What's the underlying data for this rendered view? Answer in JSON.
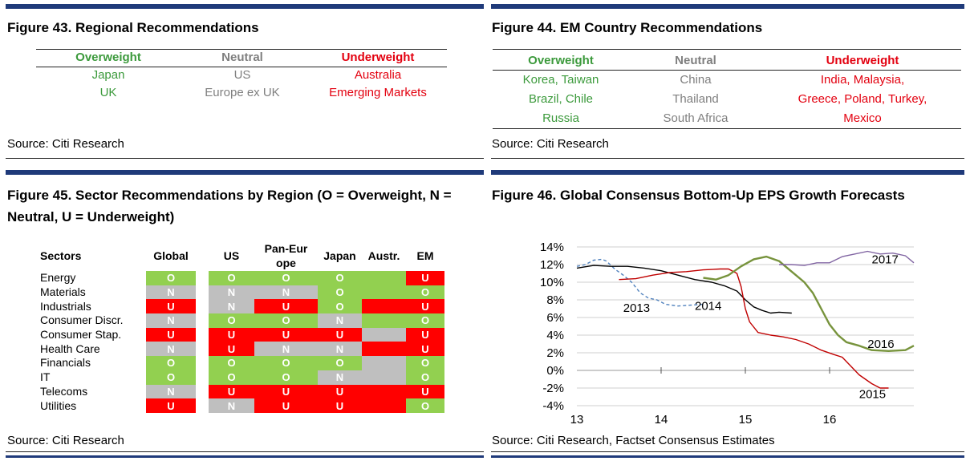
{
  "fig43": {
    "title": "Figure 43. Regional Recommendations",
    "headers": {
      "overweight": "Overweight",
      "neutral": "Neutral",
      "underweight": "Underweight"
    },
    "overweight": [
      "Japan",
      "UK"
    ],
    "neutral": [
      "US",
      "Europe ex UK"
    ],
    "underweight": [
      "Australia",
      "Emerging Markets"
    ],
    "source": "Source: Citi Research"
  },
  "fig44": {
    "title": "Figure 44. EM Country Recommendations",
    "headers": {
      "overweight": "Overweight",
      "neutral": "Neutral",
      "underweight": "Underweight"
    },
    "overweight": [
      "Korea, Taiwan",
      "Brazil, Chile",
      "Russia"
    ],
    "neutral": [
      "China",
      "Thailand",
      "South Africa"
    ],
    "underweight": [
      "India, Malaysia,",
      "Greece, Poland, Turkey,",
      "Mexico"
    ],
    "source": "Source: Citi Research"
  },
  "fig45": {
    "title_line1": "Figure 45. Sector Recommendations by Region (O = Overweight, N =",
    "title_line2": "Neutral, U = Underweight)",
    "columns": [
      "Sectors",
      "Global",
      "US",
      "Pan-Europe",
      "Japan",
      "Austr.",
      "EM"
    ],
    "rows": [
      {
        "sector": "Energy",
        "Global": "O",
        "US": "O",
        "Pan-Europe": "O",
        "Japan": "O",
        "Austr.": "O",
        "EM": "U"
      },
      {
        "sector": "Materials",
        "Global": "N",
        "US": "N",
        "Pan-Europe": "N",
        "Japan": "O",
        "Austr.": "O",
        "EM": "O"
      },
      {
        "sector": "Industrials",
        "Global": "U",
        "US": "N",
        "Pan-Europe": "U",
        "Japan": "O",
        "Austr.": "U",
        "EM": "U"
      },
      {
        "sector": "Consumer Discr.",
        "Global": "N",
        "US": "O",
        "Pan-Europe": "O",
        "Japan": "N",
        "Austr.": "O",
        "EM": "O"
      },
      {
        "sector": "Consumer Stap.",
        "Global": "U",
        "US": "U",
        "Pan-Europe": "U",
        "Japan": "U",
        "Austr.": "N",
        "EM": "U"
      },
      {
        "sector": "Health Care",
        "Global": "N",
        "US": "U",
        "Pan-Europe": "N",
        "Japan": "N",
        "Austr.": "U",
        "EM": "U"
      },
      {
        "sector": "Financials",
        "Global": "O",
        "US": "O",
        "Pan-Europe": "O",
        "Japan": "O",
        "Austr.": "N",
        "EM": "O"
      },
      {
        "sector": "IT",
        "Global": "O",
        "US": "O",
        "Pan-Europe": "O",
        "Japan": "N",
        "Austr.": "N",
        "EM": "O"
      },
      {
        "sector": "Telecoms",
        "Global": "N",
        "US": "U",
        "Pan-Europe": "U",
        "Japan": "U",
        "Austr.": "U",
        "EM": "U"
      },
      {
        "sector": "Utilities",
        "Global": "U",
        "US": "N",
        "Pan-Europe": "U",
        "Japan": "U",
        "Austr.": "U",
        "EM": "O"
      }
    ],
    "colors": {
      "O": "#92d050",
      "N": "#bfbfbf",
      "U": "#ff0000"
    },
    "source": "Source: Citi Research"
  },
  "fig46": {
    "title": "Figure 46. Global Consensus Bottom-Up EPS Growth Forecasts",
    "source": "Source: Citi Research, Factset Consensus Estimates"
  },
  "chart_data": {
    "type": "line",
    "title": "Figure 46. Global Consensus Bottom-Up EPS Growth Forecasts",
    "xlabel": "",
    "ylabel": "",
    "xlim": [
      13,
      17
    ],
    "ylim": [
      -4,
      14
    ],
    "xticks": [
      13,
      14,
      15,
      16
    ],
    "xtick_labels": [
      "13",
      "14",
      "15",
      "16"
    ],
    "yticks": [
      -4,
      -2,
      0,
      2,
      4,
      6,
      8,
      10,
      12,
      14
    ],
    "ytick_labels": [
      "-4%",
      "-2%",
      "0%",
      "2%",
      "4%",
      "6%",
      "8%",
      "10%",
      "12%",
      "14%"
    ],
    "grid": true,
    "series": [
      {
        "name": "2013",
        "color": "#4f81bd",
        "dash": true,
        "label_at": [
          13.55,
          7.1
        ],
        "x": [
          13.0,
          13.1,
          13.2,
          13.3,
          13.35,
          13.45,
          13.55,
          13.65,
          13.75,
          13.85,
          13.95,
          14.05,
          14.2,
          14.35,
          14.5
        ],
        "y": [
          11.8,
          12.0,
          12.5,
          12.6,
          12.4,
          11.5,
          10.8,
          10.0,
          8.8,
          8.2,
          8.0,
          7.5,
          7.3,
          7.4,
          7.5
        ]
      },
      {
        "name": "2014",
        "color": "#000000",
        "dash": false,
        "label_at": [
          14.4,
          7.3
        ],
        "x": [
          13.0,
          13.2,
          13.4,
          13.6,
          13.8,
          14.0,
          14.2,
          14.4,
          14.6,
          14.75,
          14.9,
          15.0,
          15.1,
          15.2,
          15.3,
          15.4,
          15.55
        ],
        "y": [
          11.6,
          11.9,
          11.8,
          11.8,
          11.6,
          11.3,
          10.8,
          10.3,
          10.0,
          9.6,
          9.0,
          8.0,
          7.2,
          6.8,
          6.5,
          6.6,
          6.5
        ]
      },
      {
        "name": "2015",
        "color": "#c00000",
        "dash": false,
        "label_at": [
          16.35,
          -2.7
        ],
        "x": [
          13.5,
          13.7,
          13.9,
          14.1,
          14.3,
          14.5,
          14.7,
          14.8,
          14.9,
          14.95,
          15.0,
          15.05,
          15.15,
          15.3,
          15.45,
          15.6,
          15.75,
          15.9,
          16.05,
          16.15,
          16.25,
          16.35,
          16.5,
          16.6,
          16.7
        ],
        "y": [
          10.3,
          10.4,
          10.8,
          11.1,
          11.2,
          11.4,
          11.5,
          11.5,
          11.0,
          9.5,
          7.0,
          5.5,
          4.3,
          4.0,
          3.8,
          3.5,
          3.0,
          2.3,
          1.8,
          1.5,
          0.5,
          -0.5,
          -1.5,
          -2.0,
          -2.0
        ]
      },
      {
        "name": "2016",
        "color": "#77933c",
        "dash": false,
        "label_at": [
          16.45,
          3.0
        ],
        "x": [
          14.5,
          14.65,
          14.8,
          14.95,
          15.1,
          15.25,
          15.4,
          15.5,
          15.6,
          15.7,
          15.8,
          15.9,
          16.0,
          16.1,
          16.2,
          16.35,
          16.5,
          16.7,
          16.9,
          17.0
        ],
        "y": [
          10.5,
          10.3,
          10.8,
          11.8,
          12.6,
          12.9,
          12.4,
          11.6,
          10.8,
          10.0,
          8.8,
          7.0,
          5.2,
          4.0,
          3.2,
          2.8,
          2.3,
          2.2,
          2.3,
          2.8
        ]
      },
      {
        "name": "2017",
        "color": "#8064a2",
        "dash": false,
        "label_at": [
          16.5,
          12.6
        ],
        "x": [
          15.4,
          15.55,
          15.7,
          15.85,
          16.0,
          16.15,
          16.3,
          16.45,
          16.6,
          16.75,
          16.9,
          17.0
        ],
        "y": [
          12.0,
          12.0,
          11.9,
          12.2,
          12.2,
          12.9,
          13.2,
          13.5,
          13.2,
          13.3,
          13.0,
          12.2
        ]
      }
    ]
  }
}
